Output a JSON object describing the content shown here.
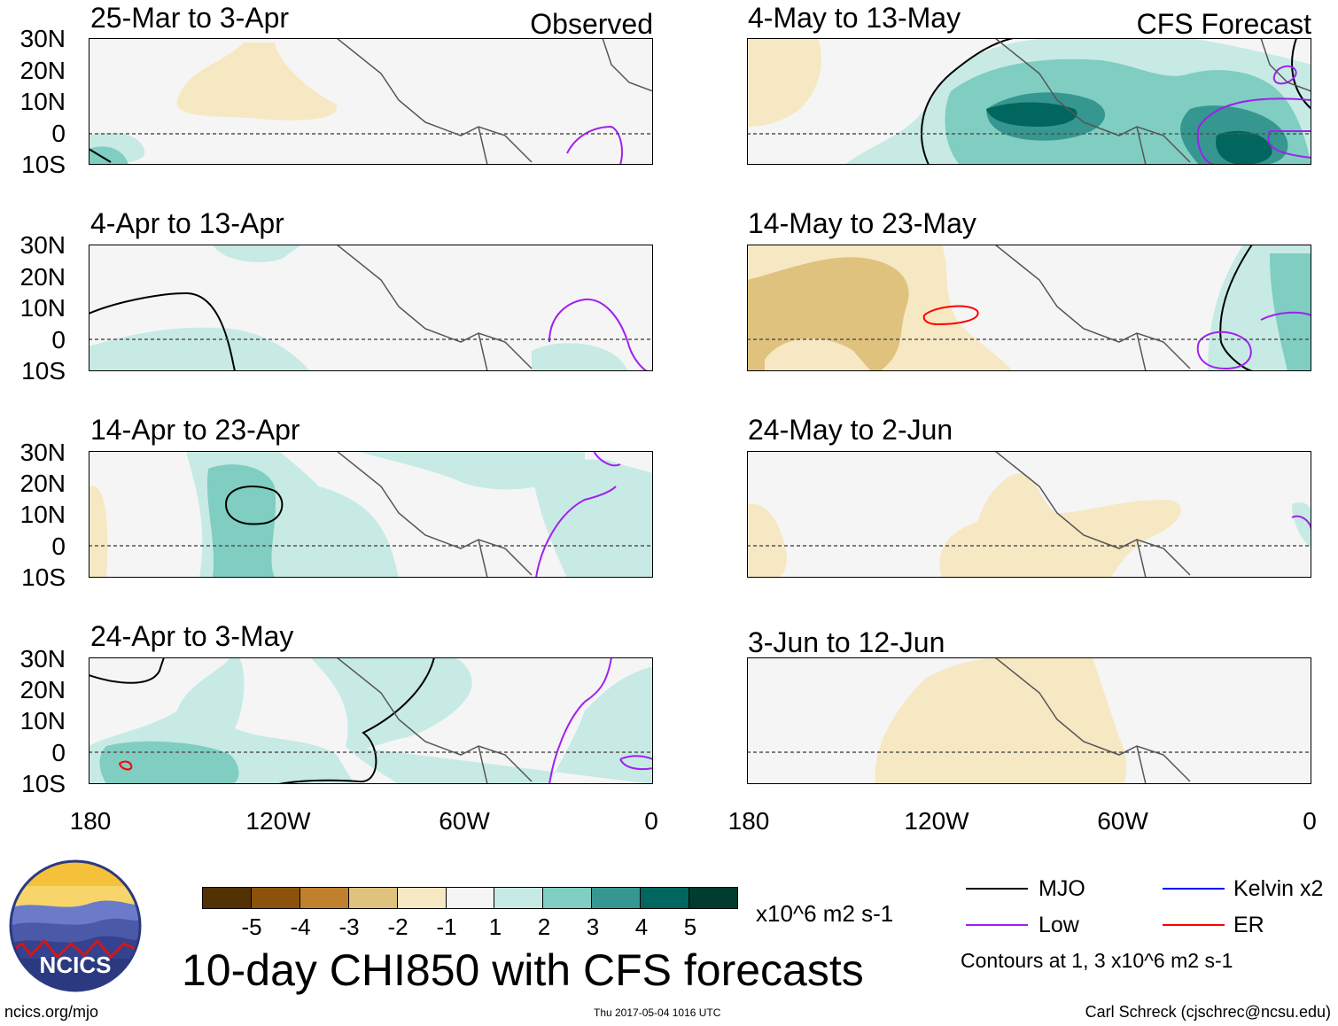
{
  "panels": [
    {
      "title": "25-Mar to 3-Apr",
      "corner": "Observed"
    },
    {
      "title": "4-Apr to 13-Apr",
      "corner": ""
    },
    {
      "title": "14-Apr to 23-Apr",
      "corner": ""
    },
    {
      "title": "24-Apr to 3-May",
      "corner": ""
    },
    {
      "title": "4-May to 13-May",
      "corner": "CFS Forecast"
    },
    {
      "title": "14-May to 23-May",
      "corner": ""
    },
    {
      "title": "24-May to 2-Jun",
      "corner": ""
    },
    {
      "title": "3-Jun to 12-Jun",
      "corner": ""
    }
  ],
  "lat_labels": [
    "30N",
    "20N",
    "10N",
    "0",
    "10S"
  ],
  "lon_labels": [
    "180",
    "120W",
    "60W",
    "0"
  ],
  "colorbar": {
    "labels": [
      "-5",
      "-4",
      "-3",
      "-2",
      "-1",
      "1",
      "2",
      "3",
      "4",
      "5"
    ],
    "colors": [
      "#543005",
      "#8c510a",
      "#bf812d",
      "#dfc27d",
      "#f6e8c3",
      "#f5f5f5",
      "#c7eae5",
      "#80cdc1",
      "#35978f",
      "#01665e",
      "#003c30"
    ],
    "units": "x10^6 m2 s-1"
  },
  "main_title": "10-day CHI850 with CFS forecasts",
  "legend": [
    {
      "label": "MJO",
      "color": "#000000"
    },
    {
      "label": "Low",
      "color": "#a020f0"
    },
    {
      "label": "Kelvin x2",
      "color": "#0000ff"
    },
    {
      "label": "ER",
      "color": "#ff0000"
    }
  ],
  "contour_note": "Contours at 1, 3 x10^6 m2 s-1",
  "footer": {
    "left": "ncics.org/mjo",
    "center": "Thu 2017-05-04 1016 UTC",
    "right": "Carl Schreck (cjschrec@ncsu.edu)"
  },
  "logo": {
    "text": "NCICS"
  }
}
